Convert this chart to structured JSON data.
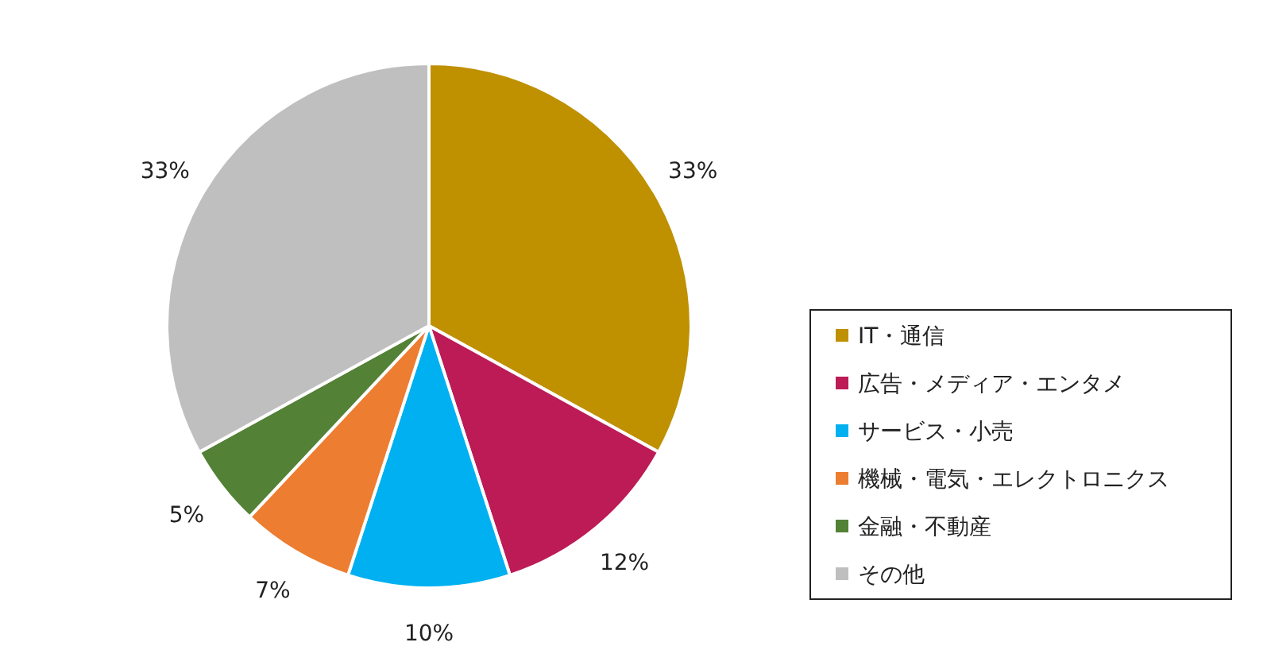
{
  "chart_data": {
    "type": "pie",
    "categories": [
      "IT・通信",
      "広告・メディア・エンタメ",
      "サービス・小売",
      "機械・電気・エレクトロニクス",
      "金融・不動産",
      "その他"
    ],
    "values": [
      33,
      12,
      10,
      7,
      5,
      33
    ],
    "colors": [
      "#bf9000",
      "#bc1b56",
      "#00b0f0",
      "#ed7d31",
      "#538135",
      "#bfbfbf"
    ],
    "value_labels": [
      "33%",
      "12%",
      "10%",
      "7%",
      "5%",
      "33%"
    ],
    "legend": "right"
  }
}
